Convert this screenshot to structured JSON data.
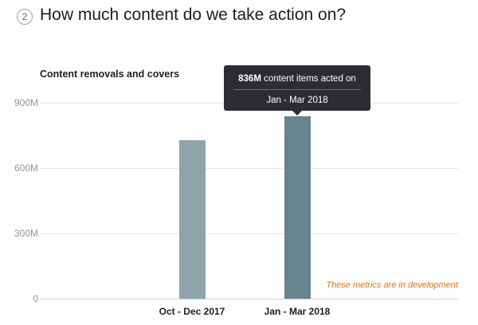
{
  "header": {
    "step_number": "2",
    "title": "How much content do we take action on?"
  },
  "chart_data": {
    "type": "bar",
    "title": "Content removals and covers",
    "categories": [
      "Oct - Dec 2017",
      "Jan - Mar 2018"
    ],
    "series": [
      {
        "values": [
          728,
          836
        ]
      }
    ],
    "y_ticks": [
      "0",
      "300M",
      "600M",
      "900M"
    ],
    "ylim": [
      0,
      900
    ],
    "y_unit": "M",
    "grid": true,
    "bar_colors": [
      "#8fa3ab",
      "#67848f"
    ],
    "tooltip": {
      "value": "836M",
      "text": "content items acted on",
      "period": "Jan - Mar 2018"
    },
    "note": "These metrics are in development"
  }
}
